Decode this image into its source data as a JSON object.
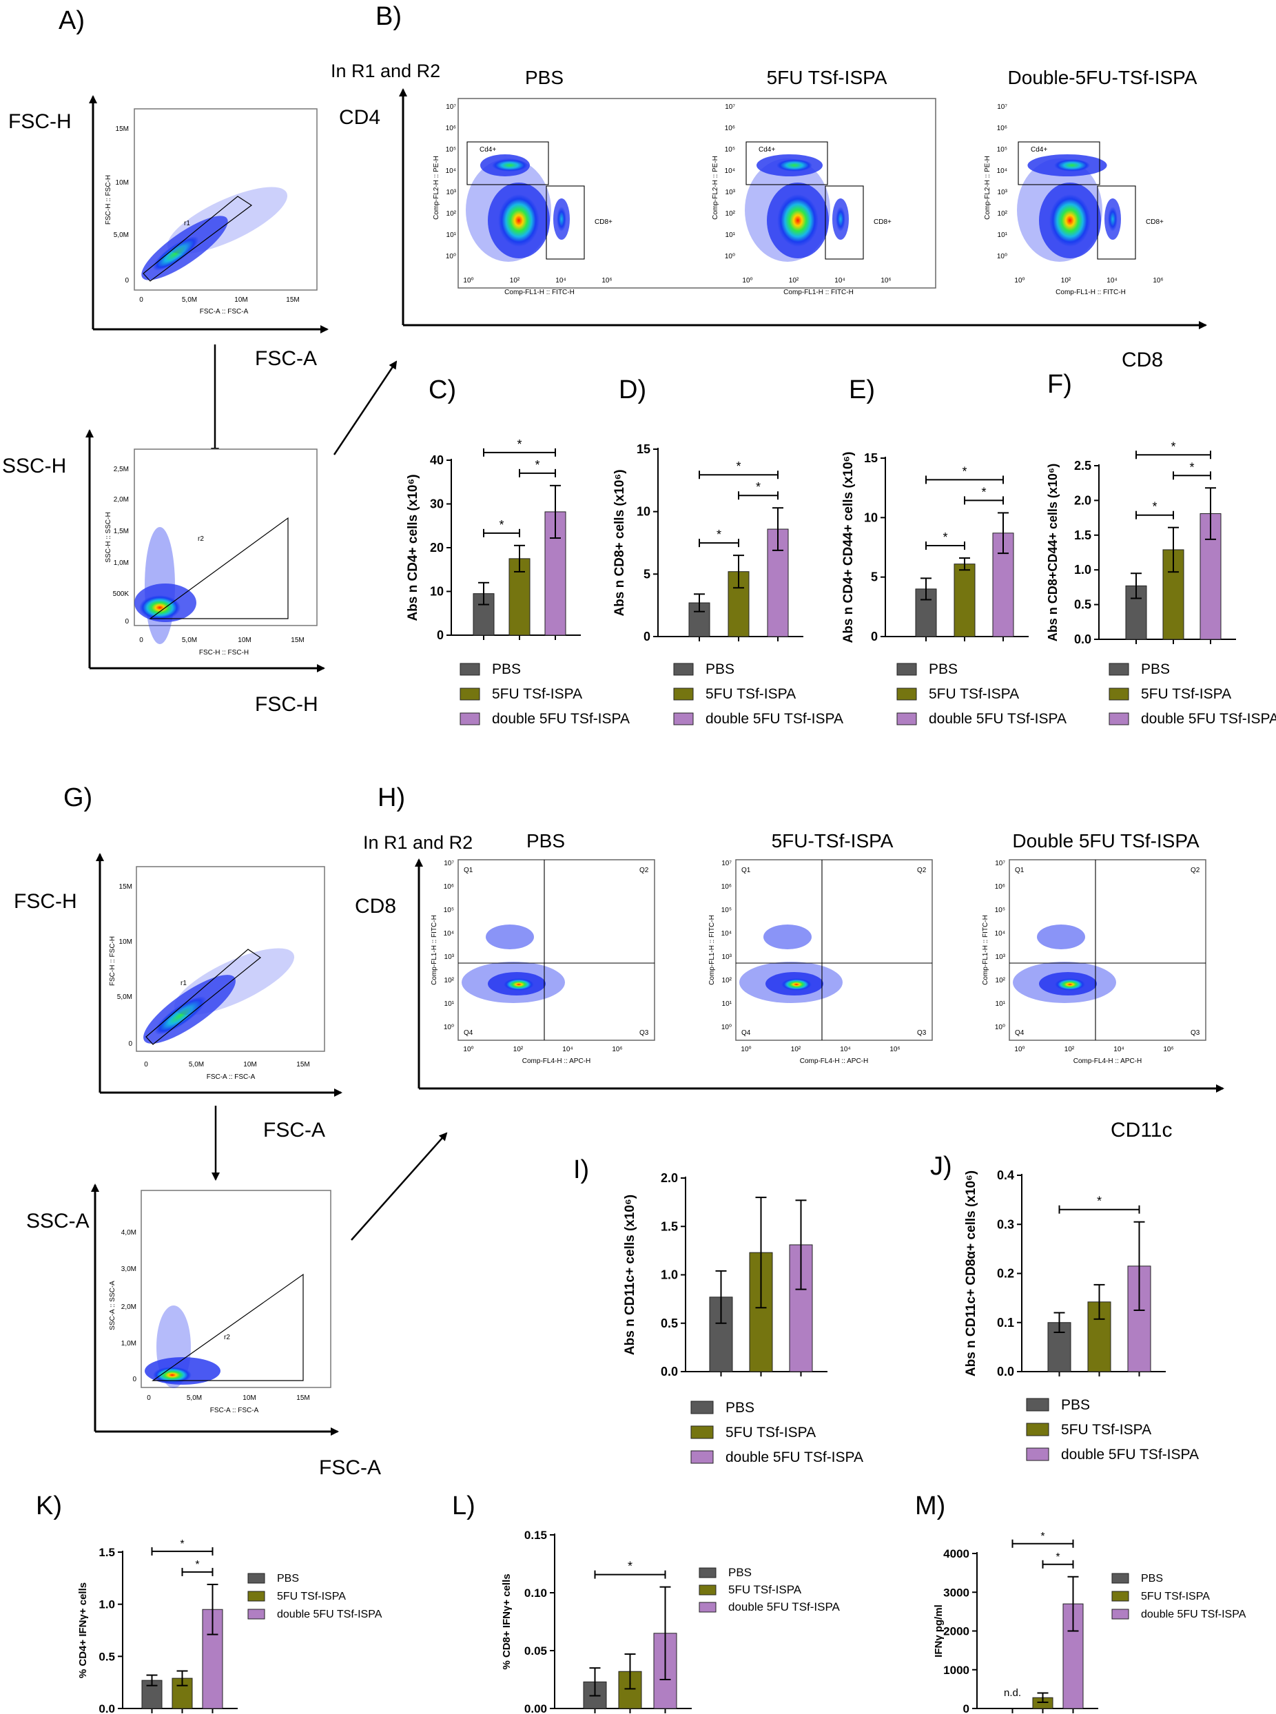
{
  "colors": {
    "pbs": "#595959",
    "fivefu": "#757510",
    "double": "#b07fc2",
    "scatter": "#1919d6",
    "black": "#000000"
  },
  "panels": {
    "A": "A)",
    "B": "B)",
    "C": "C)",
    "D": "D)",
    "E": "E)",
    "F": "F)",
    "G": "G)",
    "H": "H)",
    "I": "I)",
    "J": "J)",
    "K": "K)",
    "L": "L)",
    "M": "M)"
  },
  "gating_top": {
    "fsc_h": "FSC-H",
    "fsc_a": "FSC-A",
    "ssc_h": "SSC-H",
    "fsc_h2": "FSC-H",
    "plot1": {
      "ylab": "FSC-H :: FSC-H",
      "xlab": "FSC-A :: FSC-A",
      "gate": "r1",
      "yticks": [
        "15M",
        "10M",
        "5,0M",
        "0"
      ],
      "xticks": [
        "0",
        "5,0M",
        "10M",
        "15M"
      ]
    },
    "plot2": {
      "ylab": "SSC-H :: SSC-H",
      "xlab": "FSC-H :: FSC-H",
      "gate": "r2",
      "yticks": [
        "2,5M",
        "2,0M",
        "1,5M",
        "1,0M",
        "500K",
        "0"
      ],
      "xticks": [
        "0",
        "5,0M",
        "10M",
        "15M"
      ]
    }
  },
  "facs_top": {
    "in_label": "In R1 and R2",
    "y_marker": "CD4",
    "x_marker": "CD8",
    "titles": [
      "PBS",
      "5FU TSf-ISPA",
      "Double-5FU-TSf-ISPA"
    ],
    "ylab": "Comp-FL2-H :: PE-H",
    "xlab": "Comp-FL1-H :: FITC-H",
    "gate_cd4": "Cd4+",
    "gate_cd8": "CD8+",
    "exp_ticks": [
      "10⁰",
      "10²",
      "10⁴",
      "10⁶"
    ],
    "y_exp_ticks": [
      "10⁷",
      "10⁶",
      "10⁵",
      "10⁴",
      "10³",
      "10²",
      "10¹",
      "10⁰"
    ]
  },
  "gating_bottom": {
    "fsc_h": "FSC-H",
    "fsc_a": "FSC-A",
    "ssc_a": "SSC-A",
    "fsc_a2": "FSC-A",
    "plot1": {
      "ylab": "FSC-H :: FSC-H",
      "xlab": "FSC-A :: FSC-A",
      "gate": "r1",
      "yticks": [
        "15M",
        "10M",
        "5,0M",
        "0"
      ],
      "xticks": [
        "0",
        "5,0M",
        "10M",
        "15M"
      ]
    },
    "plot2": {
      "ylab": "SSC-A :: SSC-A",
      "xlab": "FSC-A :: FSC-A",
      "gate": "r2",
      "yticks": [
        "4,0M",
        "3,0M",
        "2,0M",
        "1,0M",
        "0"
      ],
      "xticks": [
        "0",
        "5,0M",
        "10M",
        "15M"
      ]
    }
  },
  "facs_bottom": {
    "in_label": "In R1 and R2",
    "y_marker": "CD8",
    "x_marker": "CD11c",
    "titles": [
      "PBS",
      "5FU-TSf-ISPA",
      "Double 5FU TSf-ISPA"
    ],
    "ylab": "Comp-FL1-H :: FITC-H",
    "xlab": "Comp-FL4-H :: APC-H",
    "quadrants": [
      "Q1",
      "Q2",
      "Q3",
      "Q4"
    ]
  },
  "legend_long": [
    "PBS",
    "5FU TSf-ISPA",
    "double 5FU TSf-ISPA"
  ],
  "legend_short": [
    "PBS",
    "5FU TSf-ISPA",
    "double 5FU TSf-ISPA"
  ],
  "chart_data": [
    {
      "id": "C",
      "type": "bar",
      "categories": [
        "PBS",
        "5FU TSf-ISPA",
        "double 5FU TSf-ISPA"
      ],
      "values": [
        9.5,
        17.5,
        28.2
      ],
      "errors": [
        2.5,
        3.0,
        6.0
      ],
      "ylabel": "Abs n CD4+ cells (x10⁶)",
      "ylim": [
        0,
        40
      ],
      "yticks": [
        0,
        10,
        20,
        30,
        40
      ],
      "ytick_labels": [
        "0",
        "10",
        "20",
        "30",
        "40"
      ],
      "sig": [
        [
          0,
          1,
          "*"
        ],
        [
          1,
          2,
          "*"
        ],
        [
          0,
          2,
          "*"
        ]
      ]
    },
    {
      "id": "D",
      "type": "bar",
      "categories": [
        "PBS",
        "5FU TSf-ISPA",
        "double 5FU TSf-ISPA"
      ],
      "values": [
        2.7,
        5.2,
        8.6
      ],
      "errors": [
        0.7,
        1.3,
        1.7
      ],
      "ylabel": "Abs n CD8+ cells (x10⁶)",
      "ylim": [
        0,
        15
      ],
      "yticks": [
        0,
        5,
        10,
        15
      ],
      "ytick_labels": [
        "0",
        "5",
        "10",
        "15"
      ],
      "sig": [
        [
          0,
          1,
          "*"
        ],
        [
          1,
          2,
          "*"
        ],
        [
          0,
          2,
          "*"
        ]
      ]
    },
    {
      "id": "E",
      "type": "bar",
      "categories": [
        "PBS",
        "5FU TSf-ISPA",
        "double 5FU TSf-ISPA"
      ],
      "values": [
        4.0,
        6.1,
        8.7
      ],
      "errors": [
        0.9,
        0.5,
        1.7
      ],
      "ylabel": "Abs n CD4+ CD44+ cells (x10⁶)",
      "ylim": [
        0,
        15
      ],
      "yticks": [
        0,
        5,
        10,
        15
      ],
      "ytick_labels": [
        "0",
        "5",
        "10",
        "15"
      ],
      "sig": [
        [
          0,
          1,
          "*"
        ],
        [
          1,
          2,
          "*"
        ],
        [
          0,
          2,
          "*"
        ]
      ]
    },
    {
      "id": "F",
      "type": "bar",
      "categories": [
        "PBS",
        "5FU TSf-ISPA",
        "double 5FU TSf-ISPA"
      ],
      "values": [
        0.77,
        1.29,
        1.81
      ],
      "errors": [
        0.18,
        0.32,
        0.37
      ],
      "ylabel": "Abs n CD8+CD44+ cells (x10⁶)",
      "ylim": [
        0,
        2.5
      ],
      "yticks": [
        0,
        0.5,
        1,
        1.5,
        2,
        2.5
      ],
      "ytick_labels": [
        "0.0",
        "0.5",
        "1.0",
        "1.5",
        "2.0",
        "2.5"
      ],
      "sig": [
        [
          0,
          1,
          "*"
        ],
        [
          1,
          2,
          "*"
        ],
        [
          0,
          2,
          "*"
        ]
      ]
    },
    {
      "id": "I",
      "type": "bar",
      "categories": [
        "PBS",
        "5FU TSf-ISPA",
        "double 5FU TSf-ISPA"
      ],
      "values": [
        0.77,
        1.23,
        1.31
      ],
      "errors": [
        0.27,
        0.57,
        0.46
      ],
      "ylabel": "Abs n CD11c+ cells (x10⁶)",
      "ylim": [
        0,
        2.0
      ],
      "yticks": [
        0,
        0.5,
        1,
        1.5,
        2
      ],
      "ytick_labels": [
        "0.0",
        "0.5",
        "1.0",
        "1.5",
        "2.0"
      ],
      "sig": []
    },
    {
      "id": "J",
      "type": "bar",
      "categories": [
        "PBS",
        "5FU TSf-ISPA",
        "double 5FU TSf-ISPA"
      ],
      "values": [
        0.1,
        0.142,
        0.215
      ],
      "errors": [
        0.02,
        0.035,
        0.09
      ],
      "ylabel": "Abs n CD11c+ CD8α+ cells (x10⁶)",
      "ylim": [
        0,
        0.4
      ],
      "yticks": [
        0,
        0.1,
        0.2,
        0.3,
        0.4
      ],
      "ytick_labels": [
        "0.0",
        "0.1",
        "0.2",
        "0.3",
        "0.4"
      ],
      "sig": [
        [
          0,
          2,
          "*"
        ]
      ]
    },
    {
      "id": "K",
      "type": "bar",
      "categories": [
        "PBS",
        "5FU TSf-ISPA",
        "double 5FU TSf-ISPA"
      ],
      "values": [
        0.27,
        0.29,
        0.95
      ],
      "errors": [
        0.05,
        0.07,
        0.24
      ],
      "ylabel": "% CD4+ IFNγ+ cells",
      "ylim": [
        0,
        1.5
      ],
      "yticks": [
        0,
        0.5,
        1,
        1.5
      ],
      "ytick_labels": [
        "0.0",
        "0.5",
        "1.0",
        "1.5"
      ],
      "sig": [
        [
          1,
          2,
          "*"
        ],
        [
          0,
          2,
          "*"
        ]
      ]
    },
    {
      "id": "L",
      "type": "bar",
      "categories": [
        "PBS",
        "5FU TSf-ISPA",
        "double 5FU TSf-ISPA"
      ],
      "values": [
        0.023,
        0.032,
        0.065
      ],
      "errors": [
        0.012,
        0.015,
        0.04
      ],
      "ylabel": "% CD8+ IFNγ+ cells",
      "ylim": [
        0,
        0.15
      ],
      "yticks": [
        0,
        0.05,
        0.1,
        0.15
      ],
      "ytick_labels": [
        "0.00",
        "0.05",
        "0.10",
        "0.15"
      ],
      "sig": [
        [
          0,
          2,
          "*"
        ]
      ]
    },
    {
      "id": "M",
      "type": "bar",
      "categories": [
        "PBS",
        "5FU TSf-ISPA",
        "double 5FU TSf-ISPA"
      ],
      "values": [
        0,
        280,
        2700
      ],
      "errors": [
        0,
        120,
        700
      ],
      "ylabel": "IFNγ pg/ml",
      "ylim": [
        0,
        4000
      ],
      "yticks": [
        0,
        1000,
        2000,
        3000,
        4000
      ],
      "ytick_labels": [
        "0",
        "1000",
        "2000",
        "3000",
        "4000"
      ],
      "sig": [
        [
          1,
          2,
          "*"
        ],
        [
          0,
          2,
          "*"
        ]
      ],
      "annotation": "n.d."
    }
  ]
}
